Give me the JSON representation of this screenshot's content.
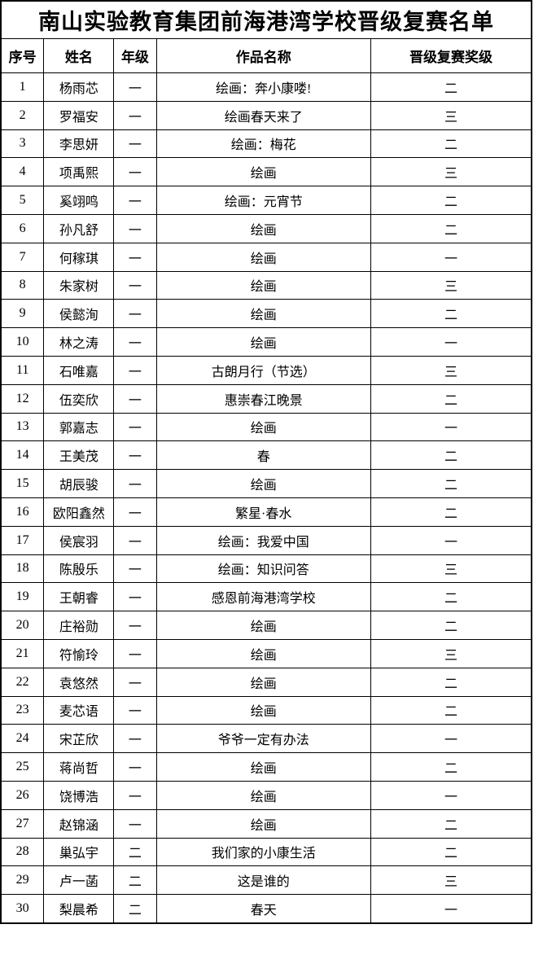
{
  "title": "南山实验教育集团前海港湾学校晋级复赛名单",
  "table": {
    "headers": [
      "序号",
      "姓名",
      "年级",
      "作品名称",
      "晋级复赛奖级"
    ],
    "rows": [
      [
        "1",
        "杨雨芯",
        "一",
        "绘画：奔小康喽!",
        "二"
      ],
      [
        "2",
        "罗福安",
        "一",
        "绘画春天来了",
        "三"
      ],
      [
        "3",
        "李思妍",
        "一",
        "绘画：梅花",
        "二"
      ],
      [
        "4",
        "项禹熙",
        "一",
        "绘画",
        "三"
      ],
      [
        "5",
        "奚翊鸣",
        "一",
        "绘画：元宵节",
        "二"
      ],
      [
        "6",
        "孙凡舒",
        "一",
        "绘画",
        "二"
      ],
      [
        "7",
        "何稼琪",
        "一",
        "绘画",
        "一"
      ],
      [
        "8",
        "朱家树",
        "一",
        "绘画",
        "三"
      ],
      [
        "9",
        "侯懿洵",
        "一",
        "绘画",
        "二"
      ],
      [
        "10",
        "林之涛",
        "一",
        "绘画",
        "一"
      ],
      [
        "11",
        "石唯嘉",
        "一",
        "古朗月行（节选）",
        "三"
      ],
      [
        "12",
        "伍奕欣",
        "一",
        "惠崇春江晚景",
        "二"
      ],
      [
        "13",
        "郭嘉志",
        "一",
        "绘画",
        "一"
      ],
      [
        "14",
        "王美茂",
        "一",
        "春",
        "二"
      ],
      [
        "15",
        "胡辰骏",
        "一",
        "绘画",
        "二"
      ],
      [
        "16",
        "欧阳鑫然",
        "一",
        "繁星·春水",
        "二"
      ],
      [
        "17",
        "侯宸羽",
        "一",
        "绘画：我爱中国",
        "一"
      ],
      [
        "18",
        "陈殷乐",
        "一",
        "绘画：知识问答",
        "三"
      ],
      [
        "19",
        "王朝睿",
        "一",
        "感恩前海港湾学校",
        "二"
      ],
      [
        "20",
        "庄裕勋",
        "一",
        "绘画",
        "二"
      ],
      [
        "21",
        "符愉玲",
        "一",
        "绘画",
        "三"
      ],
      [
        "22",
        "袁悠然",
        "一",
        "绘画",
        "二"
      ],
      [
        "23",
        "麦芯语",
        "一",
        "绘画",
        "二"
      ],
      [
        "24",
        "宋芷欣",
        "一",
        "爷爷一定有办法",
        "一"
      ],
      [
        "25",
        "蒋尚哲",
        "一",
        "绘画",
        "二"
      ],
      [
        "26",
        "饶博浩",
        "一",
        "绘画",
        "一"
      ],
      [
        "27",
        "赵锦涵",
        "一",
        "绘画",
        "二"
      ],
      [
        "28",
        "巢弘宇",
        "二",
        "我们家的小康生活",
        "二"
      ],
      [
        "29",
        "卢一菡",
        "二",
        "这是谁的",
        "三"
      ],
      [
        "30",
        "梨晨希",
        "二",
        "春天",
        "一"
      ]
    ]
  }
}
